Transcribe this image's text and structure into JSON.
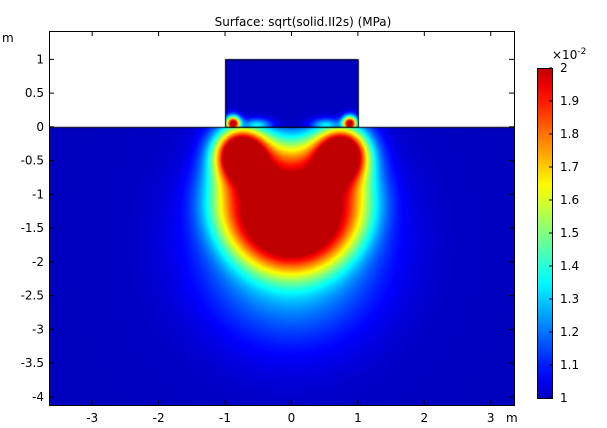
{
  "chart_data": {
    "type": "heatmap",
    "title": "Surface: sqrt(solid.II2s) (MPa)",
    "x_unit": "m",
    "y_unit": "m",
    "xlim": [
      -3.65,
      3.35
    ],
    "ylim": [
      -4.12,
      1.42
    ],
    "x_ticks": [
      -3,
      -2,
      -1,
      0,
      1,
      2,
      3
    ],
    "y_ticks": [
      1,
      0.5,
      0,
      -0.5,
      -1,
      -1.5,
      -2,
      -2.5,
      -3,
      -3.5,
      -4
    ],
    "x_tick_labels": [
      "-3",
      "-2",
      "-1",
      "0",
      "1",
      "2",
      "3"
    ],
    "y_tick_labels": [
      "1",
      "0.5",
      "0",
      "-0.5",
      "-1",
      "-1.5",
      "-2",
      "-2.5",
      "-3",
      "-3.5",
      "-4"
    ],
    "colorbar": {
      "multiplier": "×10",
      "exponent": "-2",
      "range": [
        1,
        2
      ],
      "ticks": [
        2,
        1.9,
        1.8,
        1.7,
        1.6,
        1.5,
        1.4,
        1.3,
        1.2,
        1.1,
        1
      ],
      "tick_labels": [
        "2",
        "1.9",
        "1.8",
        "1.7",
        "1.6",
        "1.5",
        "1.4",
        "1.3",
        "1.2",
        "1.1",
        "1"
      ]
    },
    "domains": {
      "block": {
        "x": [
          -1,
          1
        ],
        "y": [
          0,
          1
        ]
      },
      "soil": {
        "x": [
          -3.65,
          3.35
        ],
        "y": [
          -4.12,
          0
        ]
      }
    },
    "colors": {
      "min": "#00008f",
      "max": "#800000",
      "background": "#ffffff"
    }
  }
}
